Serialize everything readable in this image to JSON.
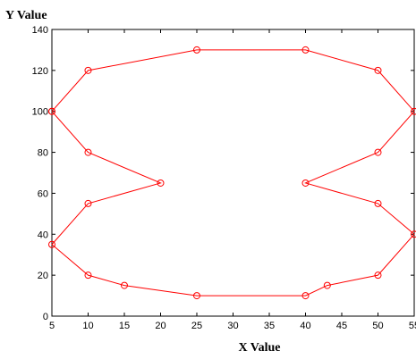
{
  "chart_data": {
    "type": "line",
    "title": "",
    "xlabel": "X Value",
    "ylabel": "Y Value",
    "xlim": [
      5,
      55
    ],
    "ylim": [
      0,
      140
    ],
    "xticks": [
      5,
      10,
      15,
      20,
      25,
      30,
      35,
      40,
      45,
      50,
      55
    ],
    "yticks": [
      0,
      20,
      40,
      60,
      80,
      100,
      120,
      140
    ],
    "grid": false,
    "legend": "none",
    "color": "#ff0000",
    "marker": "circle",
    "series": [
      {
        "x": [
          5,
          10,
          25,
          40,
          50,
          55,
          50,
          40,
          50,
          55,
          50,
          43,
          40,
          25,
          15,
          10,
          5,
          10,
          20,
          10,
          5
        ],
        "y": [
          100,
          120,
          130,
          130,
          120,
          100,
          80,
          65,
          55,
          40,
          20,
          15,
          10,
          10,
          15,
          20,
          35,
          55,
          65,
          80,
          100
        ]
      }
    ]
  }
}
